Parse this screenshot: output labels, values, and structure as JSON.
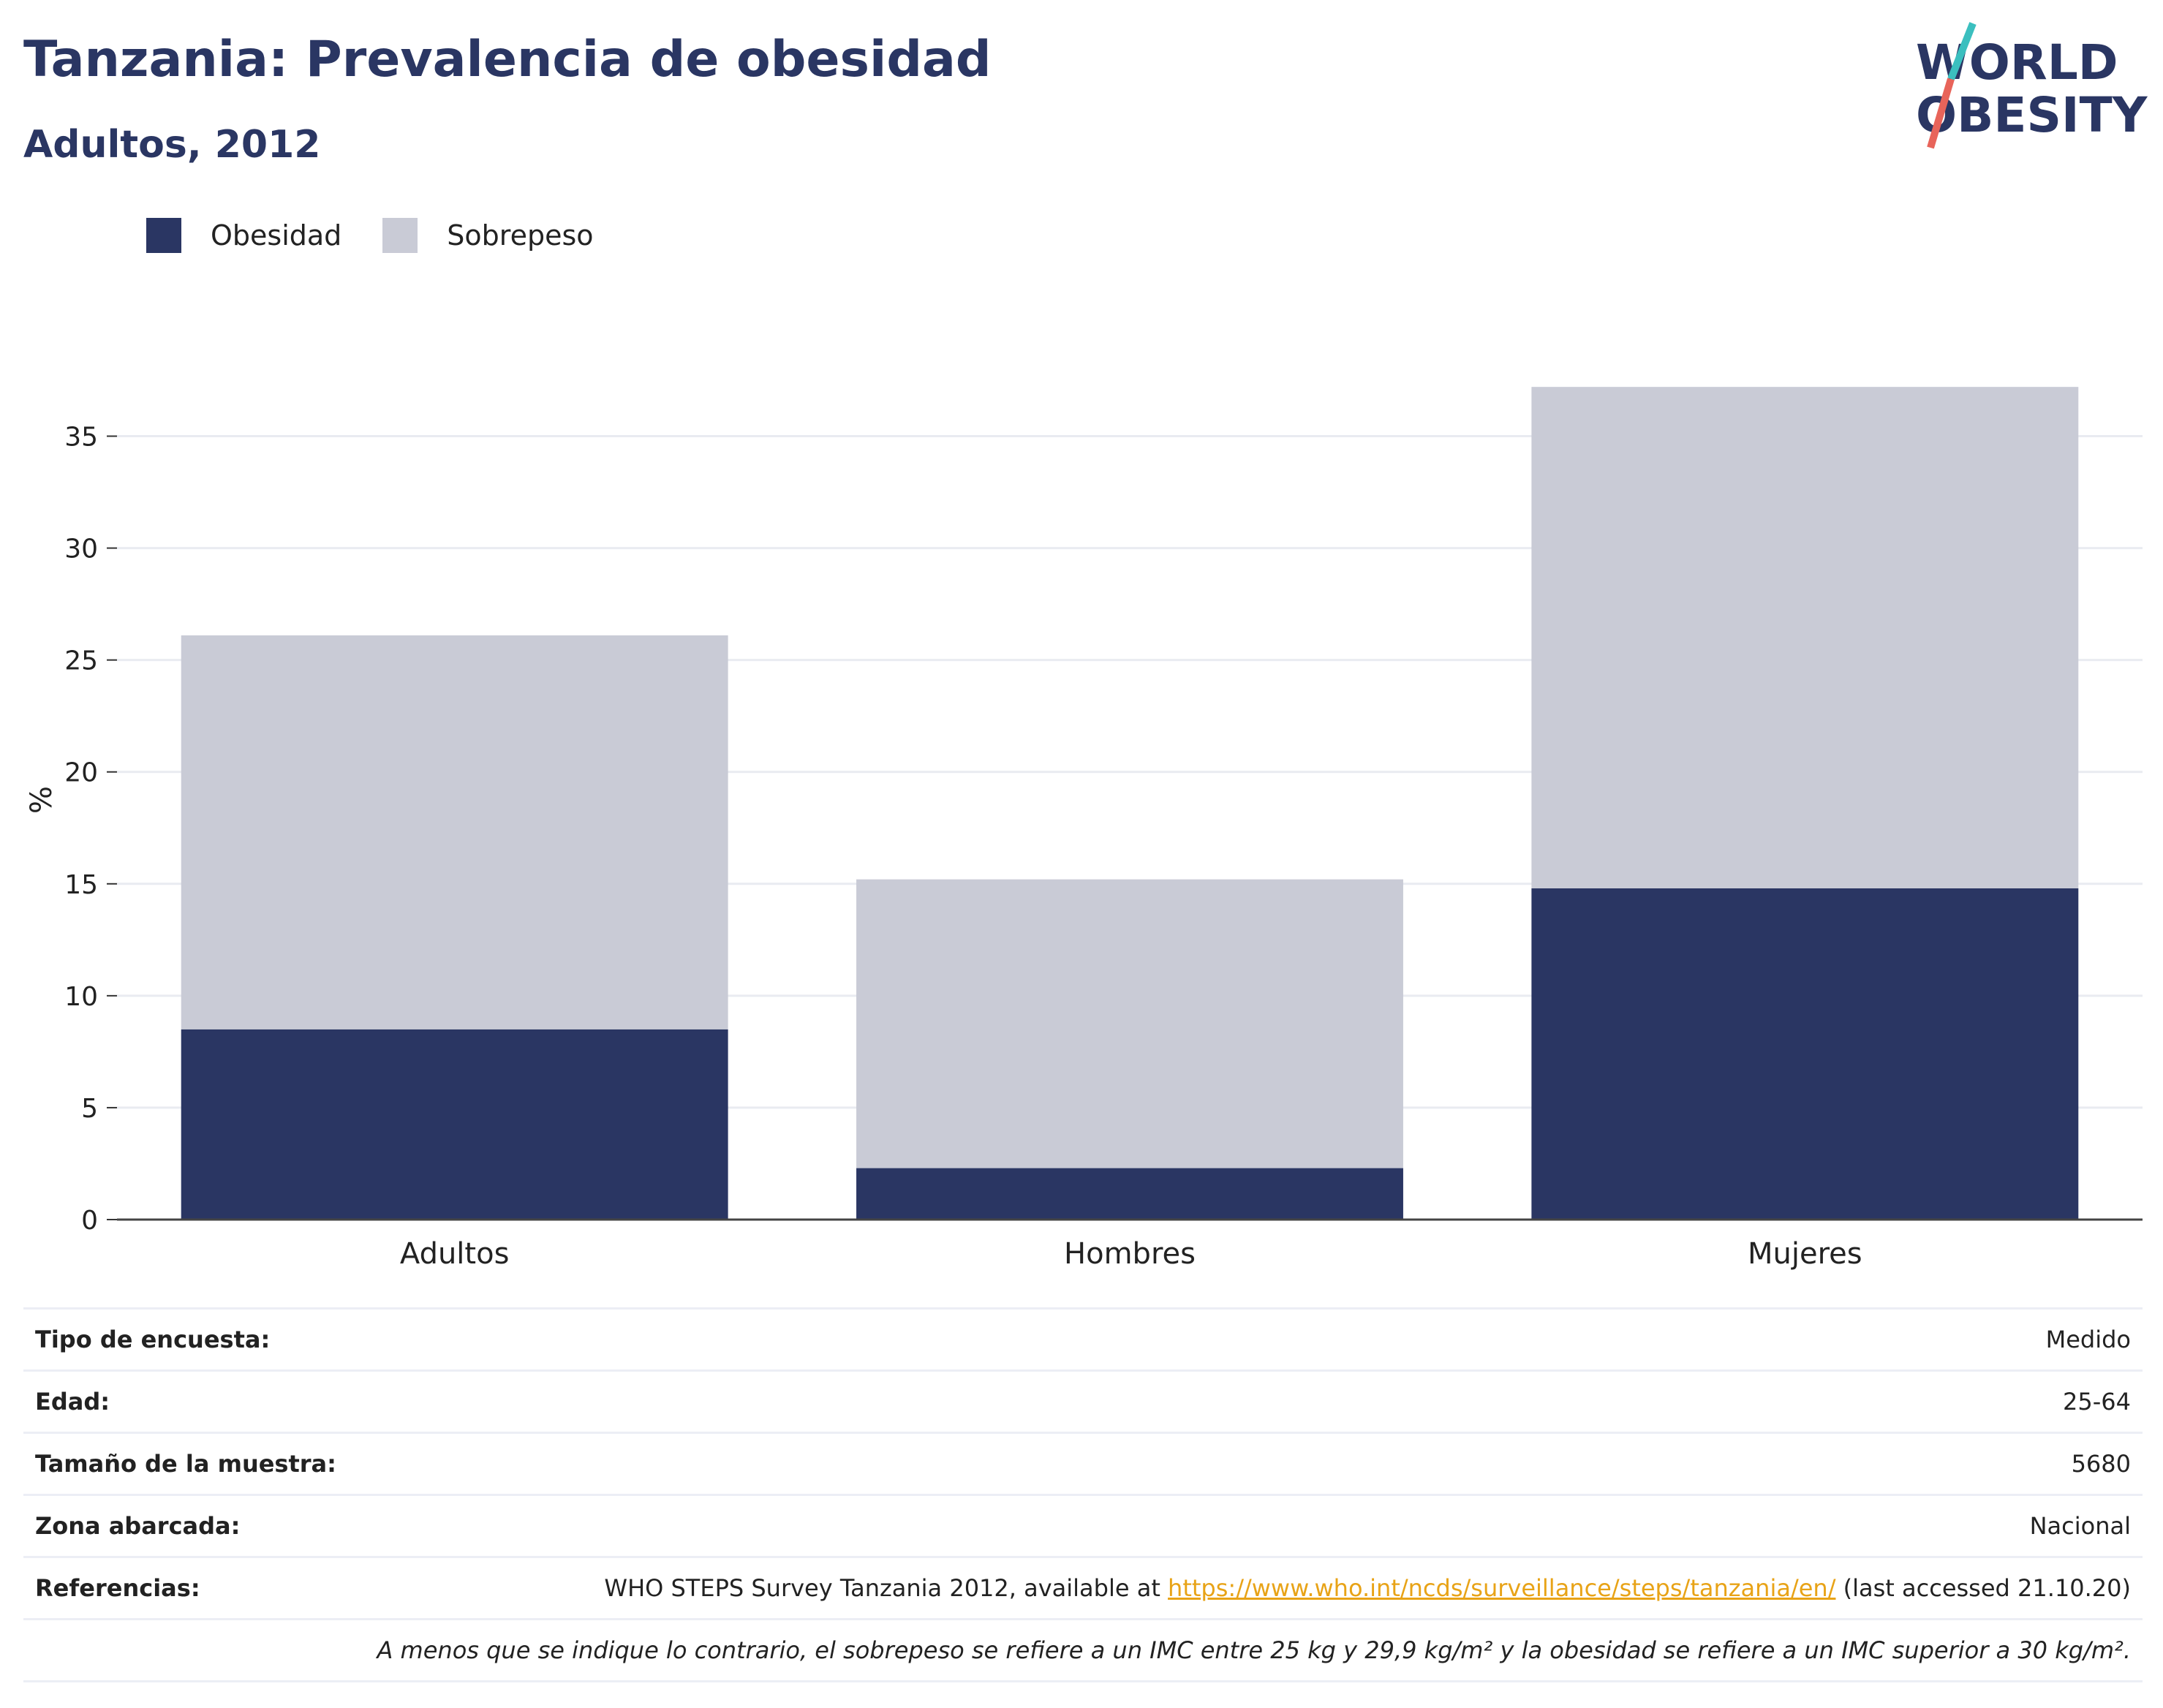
{
  "title": "Tanzania: Prevalencia de obesidad",
  "subtitle": "Adultos, 2012",
  "logo": {
    "line1": "WORLD",
    "line2": "OBESITY"
  },
  "colors": {
    "obesidad": "#2a3663",
    "sobrepeso": "#c9cbd6",
    "accent_teal": "#3bbfbf",
    "accent_red": "#e8645a",
    "link": "#e8a317"
  },
  "legend": [
    "Obesidad",
    "Sobrepeso"
  ],
  "chart_data": {
    "type": "bar",
    "stacked": true,
    "categories": [
      "Adultos",
      "Hombres",
      "Mujeres"
    ],
    "series": [
      {
        "name": "Obesidad",
        "values": [
          8.5,
          2.3,
          14.8
        ]
      },
      {
        "name": "Sobrepeso",
        "values": [
          17.6,
          12.9,
          22.4
        ]
      }
    ],
    "ylabel": "%",
    "ylim": [
      0,
      37.5
    ],
    "yticks": [
      0,
      5,
      10,
      15,
      20,
      25,
      30,
      35
    ],
    "grid": true,
    "legend_position": "top-left"
  },
  "info": {
    "rows": [
      {
        "key": "Tipo de encuesta:",
        "value": "Medido"
      },
      {
        "key": "Edad:",
        "value": "25-64"
      },
      {
        "key": "Tamaño de la muestra:",
        "value": "5680"
      },
      {
        "key": "Zona abarcada:",
        "value": "Nacional"
      }
    ],
    "ref_key": "Referencias:",
    "ref_pre": "WHO STEPS Survey Tanzania 2012, available at ",
    "ref_link": "https://www.who.int/ncds/surveillance/steps/tanzania/en/",
    "ref_post": " (last accessed 21.10.20)",
    "note": "A menos que se indique lo contrario, el sobrepeso se refiere a un IMC entre 25 kg y 29,9 kg/m² y la obesidad se refiere a un IMC superior a 30 kg/m²."
  }
}
